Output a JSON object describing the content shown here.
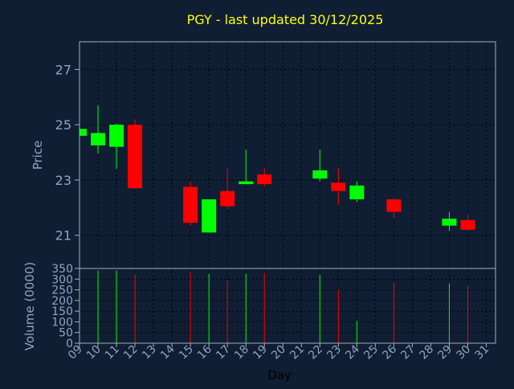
{
  "colors": {
    "background": "#0f1e33",
    "frame": "#9fb0c4",
    "grid": "#000000",
    "title": "#ffff00",
    "axis_text": "#8fa3c4",
    "up": "#00ff00",
    "down": "#ff0000"
  },
  "chart_data": [
    {
      "type": "candlestick",
      "title": "PGY - last updated 30/12/2025",
      "ylabel": "Price",
      "ylim": [
        19.8,
        28.0
      ],
      "yticks": [
        21,
        23,
        25,
        27
      ],
      "grid": true,
      "days": [
        {
          "x": "09",
          "open": 24.6,
          "high": 24.85,
          "low": 24.6,
          "close": 24.85
        },
        {
          "x": "10",
          "open": 24.25,
          "high": 25.7,
          "low": 23.95,
          "close": 24.7
        },
        {
          "x": "11",
          "open": 24.2,
          "high": 25.05,
          "low": 23.4,
          "close": 25.0
        },
        {
          "x": "12",
          "open": 25.0,
          "high": 25.2,
          "low": 22.7,
          "close": 22.7
        },
        {
          "x": "15",
          "open": 22.75,
          "high": 22.95,
          "low": 21.35,
          "close": 21.45
        },
        {
          "x": "16",
          "open": 21.1,
          "high": 22.3,
          "low": 21.1,
          "close": 22.3
        },
        {
          "x": "17",
          "open": 22.6,
          "high": 23.45,
          "low": 21.95,
          "close": 22.05
        },
        {
          "x": "18",
          "open": 22.85,
          "high": 24.1,
          "low": 22.85,
          "close": 22.95
        },
        {
          "x": "19",
          "open": 23.2,
          "high": 23.45,
          "low": 22.75,
          "close": 22.85
        },
        {
          "x": "22",
          "open": 23.05,
          "high": 24.1,
          "low": 22.95,
          "close": 23.35
        },
        {
          "x": "23",
          "open": 22.9,
          "high": 23.45,
          "low": 22.1,
          "close": 22.6
        },
        {
          "x": "24",
          "open": 22.3,
          "high": 22.95,
          "low": 22.2,
          "close": 22.8
        },
        {
          "x": "26",
          "open": 22.3,
          "high": 22.3,
          "low": 21.6,
          "close": 21.85
        },
        {
          "x": "29",
          "open": 21.35,
          "high": 21.85,
          "low": 21.15,
          "close": 21.6
        },
        {
          "x": "30",
          "open": 21.55,
          "high": 21.75,
          "low": 21.15,
          "close": 21.2
        }
      ]
    },
    {
      "type": "bar",
      "title": "",
      "xlabel": "Day",
      "ylabel": "Volume (0000)",
      "ylim": [
        0,
        350
      ],
      "yticks": [
        0,
        50,
        100,
        150,
        200,
        250,
        300,
        350
      ],
      "grid": true,
      "categories": [
        "09",
        "10",
        "11",
        "12",
        "13",
        "14",
        "15",
        "16",
        "17",
        "18",
        "19",
        "20",
        "21",
        "22",
        "23",
        "24",
        "25",
        "26",
        "27",
        "28",
        "29",
        "30",
        "31"
      ],
      "bars": [
        {
          "x": "10",
          "value": 340,
          "direction": "up"
        },
        {
          "x": "11",
          "value": 340,
          "direction": "up"
        },
        {
          "x": "12",
          "value": 320,
          "direction": "down"
        },
        {
          "x": "15",
          "value": 335,
          "direction": "down"
        },
        {
          "x": "16",
          "value": 325,
          "direction": "up"
        },
        {
          "x": "17",
          "value": 295,
          "direction": "down"
        },
        {
          "x": "18",
          "value": 325,
          "direction": "up"
        },
        {
          "x": "19",
          "value": 330,
          "direction": "down"
        },
        {
          "x": "22",
          "value": 320,
          "direction": "up"
        },
        {
          "x": "23",
          "value": 250,
          "direction": "down"
        },
        {
          "x": "24",
          "value": 105,
          "direction": "up"
        },
        {
          "x": "26",
          "value": 285,
          "direction": "down"
        },
        {
          "x": "29",
          "value": 280,
          "direction": "up"
        },
        {
          "x": "30",
          "value": 270,
          "direction": "down"
        }
      ]
    }
  ]
}
